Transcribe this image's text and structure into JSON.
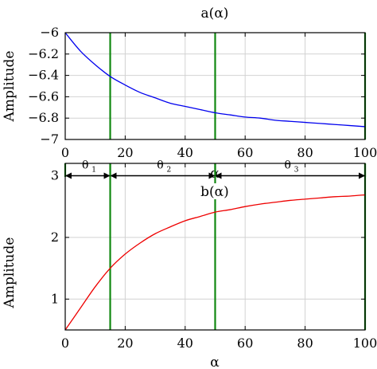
{
  "chart_data": [
    {
      "type": "line",
      "title": "a(α)",
      "xlabel": "α",
      "ylabel": "Amplitude",
      "xlim": [
        0,
        100
      ],
      "ylim": [
        -7,
        -6
      ],
      "x_ticks": [
        0,
        20,
        40,
        60,
        80,
        100
      ],
      "y_ticks": [
        -7,
        -6.8,
        -6.6,
        -6.4,
        -6.2,
        -6
      ],
      "x_tick_labels": [
        "0",
        "20",
        "40",
        "60",
        "80",
        "100"
      ],
      "y_tick_labels": [
        "−7",
        "−6.8",
        "−6.6",
        "−6.4",
        "−6.2",
        "−6"
      ],
      "grid": true,
      "series_color": "#0000ee",
      "vertical_lines": [
        15,
        50,
        100
      ],
      "vertical_line_color": "#118811",
      "series": [
        {
          "x": [
            0,
            5,
            10,
            15,
            20,
            25,
            30,
            35,
            40,
            45,
            50,
            55,
            60,
            65,
            70,
            75,
            80,
            85,
            90,
            95,
            100
          ],
          "values": [
            -6.0,
            -6.17,
            -6.3,
            -6.41,
            -6.49,
            -6.56,
            -6.61,
            -6.66,
            -6.69,
            -6.72,
            -6.75,
            -6.77,
            -6.79,
            -6.8,
            -6.82,
            -6.83,
            -6.84,
            -6.85,
            -6.86,
            -6.87,
            -6.88
          ]
        }
      ]
    },
    {
      "type": "line",
      "title": "b(α)",
      "xlabel": "α",
      "ylabel": "Amplitude",
      "xlim": [
        0,
        100
      ],
      "ylim": [
        0.5,
        3.2
      ],
      "x_ticks": [
        0,
        20,
        40,
        60,
        80,
        100
      ],
      "y_ticks": [
        1,
        2,
        3
      ],
      "x_tick_labels": [
        "0",
        "20",
        "40",
        "60",
        "80",
        "100"
      ],
      "y_tick_labels": [
        "1",
        "2",
        "3"
      ],
      "grid": true,
      "series_color": "#ee0000",
      "vertical_lines": [
        15,
        50,
        100
      ],
      "vertical_line_color": "#118811",
      "series": [
        {
          "x": [
            0,
            5,
            10,
            15,
            20,
            25,
            30,
            35,
            40,
            45,
            50,
            55,
            60,
            65,
            70,
            75,
            80,
            85,
            90,
            95,
            100
          ],
          "values": [
            0.5,
            0.85,
            1.2,
            1.5,
            1.73,
            1.91,
            2.06,
            2.17,
            2.27,
            2.34,
            2.41,
            2.45,
            2.5,
            2.54,
            2.57,
            2.6,
            2.62,
            2.64,
            2.66,
            2.67,
            2.69
          ]
        }
      ],
      "annotations": {
        "arrow_y": 3.0,
        "intervals": [
          {
            "from": 0,
            "to": 15,
            "label": "θ",
            "sub": "1"
          },
          {
            "from": 15,
            "to": 50,
            "label": "θ",
            "sub": "2"
          },
          {
            "from": 50,
            "to": 100,
            "label": "θ",
            "sub": "3"
          }
        ]
      }
    }
  ]
}
